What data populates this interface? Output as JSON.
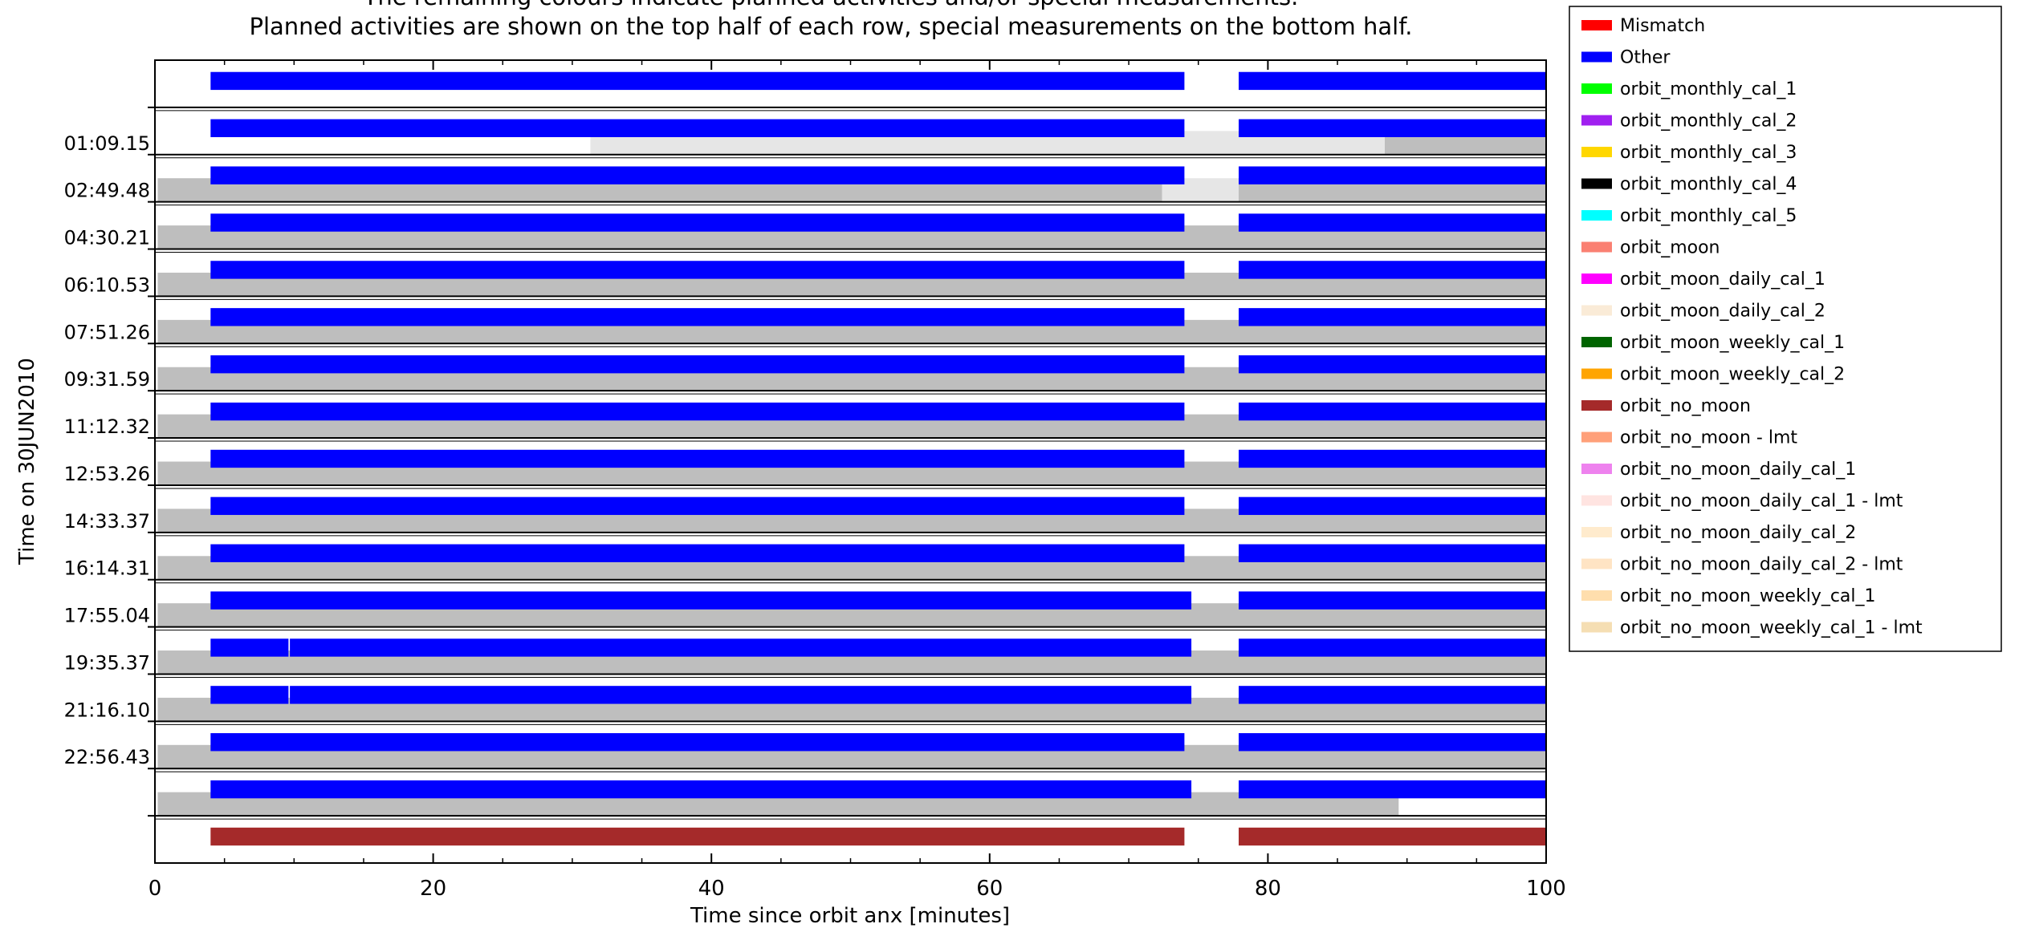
{
  "chart_data": {
    "type": "gantt",
    "title_lines": [
      "The remaining colours indicate planned activities and/or special measurements.",
      "Planned activities are shown on the top half of each row, special measurements on the bottom half."
    ],
    "xlabel": "Time since orbit anx [minutes]",
    "ylabel": "Time on 30JUN2010",
    "xlim": [
      0,
      100
    ],
    "x_ticks": [
      0,
      20,
      40,
      60,
      80,
      100
    ],
    "x_tick_labels": [
      "0",
      "20",
      "40",
      "60",
      "80",
      "100"
    ],
    "grid": false,
    "legend_placement": "right",
    "legend": [
      {
        "name": "Mismatch",
        "color": "#ff0000"
      },
      {
        "name": "Other",
        "color": "#0000ff"
      },
      {
        "name": "orbit_monthly_cal_1",
        "color": "#00ff00"
      },
      {
        "name": "orbit_monthly_cal_2",
        "color": "#a020f0"
      },
      {
        "name": "orbit_monthly_cal_3",
        "color": "#ffd700"
      },
      {
        "name": "orbit_monthly_cal_4",
        "color": "#000000"
      },
      {
        "name": "orbit_monthly_cal_5",
        "color": "#00ffff"
      },
      {
        "name": "orbit_moon",
        "color": "#fa8072"
      },
      {
        "name": "orbit_moon_daily_cal_1",
        "color": "#ff00ff"
      },
      {
        "name": "orbit_moon_daily_cal_2",
        "color": "#faebd7"
      },
      {
        "name": "orbit_moon_weekly_cal_1",
        "color": "#006400"
      },
      {
        "name": "orbit_moon_weekly_cal_2",
        "color": "#ffa500"
      },
      {
        "name": "orbit_no_moon",
        "color": "#a52a2a"
      },
      {
        "name": "orbit_no_moon - lmt",
        "color": "#ffa07a"
      },
      {
        "name": "orbit_no_moon_daily_cal_1",
        "color": "#ee82ee"
      },
      {
        "name": "orbit_no_moon_daily_cal_1 - lmt",
        "color": "#ffe4e1"
      },
      {
        "name": "orbit_no_moon_daily_cal_2",
        "color": "#ffebcd"
      },
      {
        "name": "orbit_no_moon_daily_cal_2 - lmt",
        "color": "#ffe4c4"
      },
      {
        "name": "orbit_no_moon_weekly_cal_1",
        "color": "#ffdead"
      },
      {
        "name": "orbit_no_moon_weekly_cal_1 - lmt",
        "color": "#f5deb3"
      }
    ],
    "rows": [
      {
        "label": "",
        "top": [
          {
            "start": 4.0,
            "end": 74.0,
            "color": "#0000ff"
          },
          {
            "start": 77.9,
            "end": 100.0,
            "color": "#0000ff"
          }
        ],
        "bottom": []
      },
      {
        "label": "",
        "top": [
          {
            "start": 4.0,
            "end": 74.0,
            "color": "#0000ff"
          },
          {
            "start": 77.9,
            "end": 100.0,
            "color": "#0000ff"
          }
        ],
        "bottom": [
          {
            "start": 31.3,
            "end": 88.4,
            "color": "#e6e6e6"
          },
          {
            "start": 88.4,
            "end": 100.0,
            "color": "#bebebe"
          }
        ]
      },
      {
        "label": "01:09.15",
        "top": [
          {
            "start": 4.0,
            "end": 74.0,
            "color": "#0000ff"
          },
          {
            "start": 77.9,
            "end": 100.0,
            "color": "#0000ff"
          }
        ],
        "bottom": [
          {
            "start": 0.2,
            "end": 72.4,
            "color": "#bebebe"
          },
          {
            "start": 72.4,
            "end": 77.9,
            "color": "#e6e6e6"
          },
          {
            "start": 77.9,
            "end": 100.0,
            "color": "#bebebe"
          }
        ]
      },
      {
        "label": "02:49.48",
        "top": [
          {
            "start": 4.0,
            "end": 74.0,
            "color": "#0000ff"
          },
          {
            "start": 77.9,
            "end": 100.0,
            "color": "#0000ff"
          }
        ],
        "bottom": [
          {
            "start": 0.2,
            "end": 100.0,
            "color": "#bebebe"
          }
        ]
      },
      {
        "label": "04:30.21",
        "top": [
          {
            "start": 4.0,
            "end": 74.0,
            "color": "#0000ff"
          },
          {
            "start": 77.9,
            "end": 100.0,
            "color": "#0000ff"
          }
        ],
        "bottom": [
          {
            "start": 0.2,
            "end": 100.0,
            "color": "#bebebe"
          }
        ]
      },
      {
        "label": "06:10.53",
        "top": [
          {
            "start": 4.0,
            "end": 74.0,
            "color": "#0000ff"
          },
          {
            "start": 77.9,
            "end": 100.0,
            "color": "#0000ff"
          }
        ],
        "bottom": [
          {
            "start": 0.2,
            "end": 100.0,
            "color": "#bebebe"
          }
        ]
      },
      {
        "label": "07:51.26",
        "top": [
          {
            "start": 4.0,
            "end": 74.0,
            "color": "#0000ff"
          },
          {
            "start": 77.9,
            "end": 100.0,
            "color": "#0000ff"
          }
        ],
        "bottom": [
          {
            "start": 0.2,
            "end": 100.0,
            "color": "#bebebe"
          }
        ]
      },
      {
        "label": "09:31.59",
        "top": [
          {
            "start": 4.0,
            "end": 74.0,
            "color": "#0000ff"
          },
          {
            "start": 77.9,
            "end": 100.0,
            "color": "#0000ff"
          }
        ],
        "bottom": [
          {
            "start": 0.2,
            "end": 100.0,
            "color": "#bebebe"
          }
        ]
      },
      {
        "label": "11:12.32",
        "top": [
          {
            "start": 4.0,
            "end": 74.0,
            "color": "#0000ff"
          },
          {
            "start": 77.9,
            "end": 100.0,
            "color": "#0000ff"
          }
        ],
        "bottom": [
          {
            "start": 0.2,
            "end": 100.0,
            "color": "#bebebe"
          }
        ]
      },
      {
        "label": "12:53.26",
        "top": [
          {
            "start": 4.0,
            "end": 74.0,
            "color": "#0000ff"
          },
          {
            "start": 77.9,
            "end": 100.0,
            "color": "#0000ff"
          }
        ],
        "bottom": [
          {
            "start": 0.2,
            "end": 100.0,
            "color": "#bebebe"
          }
        ]
      },
      {
        "label": "14:33.37",
        "top": [
          {
            "start": 4.0,
            "end": 74.0,
            "color": "#0000ff"
          },
          {
            "start": 77.9,
            "end": 100.0,
            "color": "#0000ff"
          }
        ],
        "bottom": [
          {
            "start": 0.2,
            "end": 100.0,
            "color": "#bebebe"
          }
        ]
      },
      {
        "label": "16:14.31",
        "top": [
          {
            "start": 4.0,
            "end": 74.5,
            "color": "#0000ff"
          },
          {
            "start": 77.9,
            "end": 100.0,
            "color": "#0000ff"
          }
        ],
        "bottom": [
          {
            "start": 0.2,
            "end": 100.0,
            "color": "#bebebe"
          }
        ]
      },
      {
        "label": "17:55.04",
        "top": [
          {
            "start": 4.0,
            "end": 9.6,
            "color": "#0000ff"
          },
          {
            "start": 9.7,
            "end": 74.5,
            "color": "#0000ff"
          },
          {
            "start": 77.9,
            "end": 100.0,
            "color": "#0000ff"
          }
        ],
        "bottom": [
          {
            "start": 0.2,
            "end": 100.0,
            "color": "#bebebe"
          }
        ]
      },
      {
        "label": "19:35.37",
        "top": [
          {
            "start": 4.0,
            "end": 9.6,
            "color": "#0000ff"
          },
          {
            "start": 9.7,
            "end": 74.5,
            "color": "#0000ff"
          },
          {
            "start": 77.9,
            "end": 100.0,
            "color": "#0000ff"
          }
        ],
        "bottom": [
          {
            "start": 0.2,
            "end": 100.0,
            "color": "#bebebe"
          }
        ]
      },
      {
        "label": "21:16.10",
        "top": [
          {
            "start": 4.0,
            "end": 74.0,
            "color": "#0000ff"
          },
          {
            "start": 77.9,
            "end": 100.0,
            "color": "#0000ff"
          }
        ],
        "bottom": [
          {
            "start": 0.2,
            "end": 100.0,
            "color": "#bebebe"
          }
        ]
      },
      {
        "label": "22:56.43",
        "top": [
          {
            "start": 4.0,
            "end": 74.5,
            "color": "#0000ff"
          },
          {
            "start": 77.9,
            "end": 100.0,
            "color": "#0000ff"
          }
        ],
        "bottom": [
          {
            "start": 0.2,
            "end": 89.4,
            "color": "#bebebe"
          }
        ]
      },
      {
        "label": "",
        "top": [
          {
            "start": 4.0,
            "end": 74.0,
            "color": "#a52a2a"
          },
          {
            "start": 77.9,
            "end": 100.0,
            "color": "#a52a2a"
          }
        ],
        "bottom": []
      }
    ]
  }
}
